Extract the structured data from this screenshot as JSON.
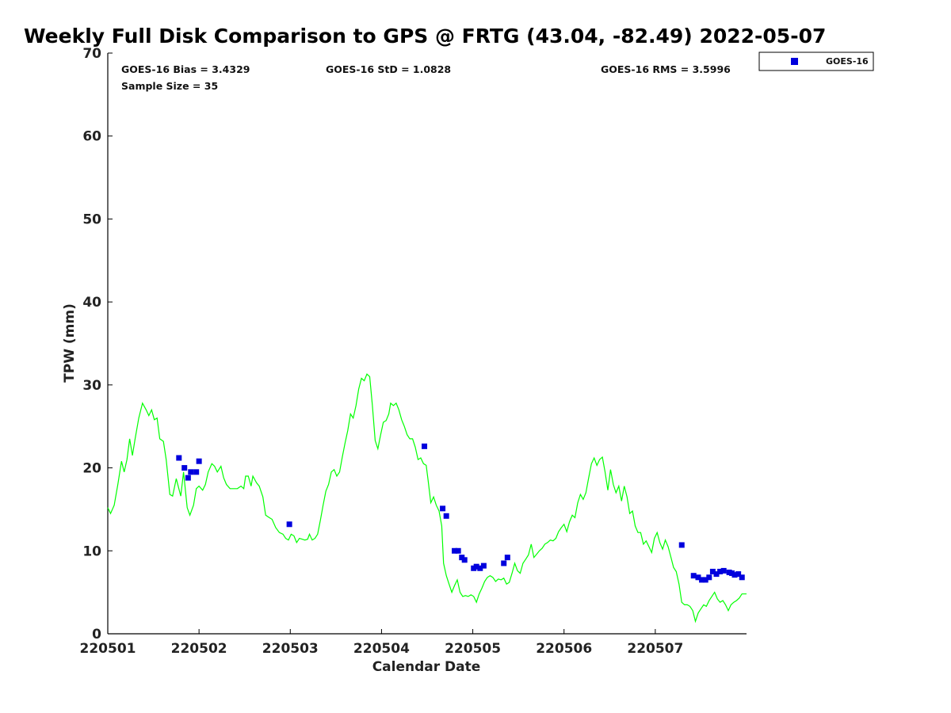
{
  "chart_data": {
    "type": "line+scatter",
    "title": "Weekly Full Disk Comparison to GPS @ FRTG (43.04, -82.49) 2022-05-07",
    "xlabel": "Calendar Date",
    "ylabel": "TPW (mm)",
    "xlim": [
      0,
      7
    ],
    "ylim": [
      0,
      70
    ],
    "x_tick_values": [
      0,
      1,
      2,
      3,
      4,
      5,
      6
    ],
    "x_tick_labels": [
      "220501",
      "220502",
      "220503",
      "220504",
      "220505",
      "220506",
      "220507"
    ],
    "y_ticks": [
      0,
      10,
      20,
      30,
      40,
      50,
      60,
      70
    ],
    "grid": false,
    "legend": {
      "position": "top-right-outside",
      "entries": [
        "GOES-16"
      ]
    },
    "stats": {
      "bias": "GOES-16 Bias = 3.4329",
      "std": "GOES-16 StD = 1.0828",
      "rms": "GOES-16 RMS = 3.5996",
      "sample": "Sample Size = 35"
    },
    "series": [
      {
        "type": "line",
        "color": "#00ff00",
        "points": [
          [
            0.0,
            15.2
          ],
          [
            0.03,
            14.5
          ],
          [
            0.07,
            15.5
          ],
          [
            0.11,
            18.0
          ],
          [
            0.15,
            20.8
          ],
          [
            0.18,
            19.5
          ],
          [
            0.21,
            21.0
          ],
          [
            0.24,
            23.5
          ],
          [
            0.27,
            21.5
          ],
          [
            0.3,
            23.5
          ],
          [
            0.34,
            26.0
          ],
          [
            0.38,
            27.8
          ],
          [
            0.42,
            27.0
          ],
          [
            0.45,
            26.3
          ],
          [
            0.48,
            27.0
          ],
          [
            0.51,
            25.8
          ],
          [
            0.54,
            26.0
          ],
          [
            0.57,
            23.5
          ],
          [
            0.61,
            23.2
          ],
          [
            0.64,
            21.0
          ],
          [
            0.68,
            16.8
          ],
          [
            0.71,
            16.6
          ],
          [
            0.75,
            18.7
          ],
          [
            0.8,
            16.6
          ],
          [
            0.83,
            19.5
          ],
          [
            0.87,
            15.2
          ],
          [
            0.9,
            14.3
          ],
          [
            0.94,
            15.5
          ],
          [
            0.97,
            17.5
          ],
          [
            1.0,
            17.8
          ],
          [
            1.04,
            17.3
          ],
          [
            1.07,
            18.0
          ],
          [
            1.1,
            19.5
          ],
          [
            1.14,
            20.5
          ],
          [
            1.17,
            20.2
          ],
          [
            1.2,
            19.5
          ],
          [
            1.24,
            20.2
          ],
          [
            1.27,
            18.8
          ],
          [
            1.3,
            18.0
          ],
          [
            1.34,
            17.5
          ],
          [
            1.38,
            17.5
          ],
          [
            1.42,
            17.5
          ],
          [
            1.46,
            17.8
          ],
          [
            1.49,
            17.5
          ],
          [
            1.51,
            19.0
          ],
          [
            1.54,
            19.0
          ],
          [
            1.57,
            17.8
          ],
          [
            1.59,
            19.0
          ],
          [
            1.63,
            18.2
          ],
          [
            1.66,
            17.8
          ],
          [
            1.7,
            16.5
          ],
          [
            1.73,
            14.3
          ],
          [
            1.77,
            14.0
          ],
          [
            1.8,
            13.8
          ],
          [
            1.84,
            12.8
          ],
          [
            1.88,
            12.2
          ],
          [
            1.92,
            12.0
          ],
          [
            1.95,
            11.5
          ],
          [
            1.98,
            11.3
          ],
          [
            2.01,
            12.0
          ],
          [
            2.04,
            11.8
          ],
          [
            2.07,
            11.0
          ],
          [
            2.1,
            11.5
          ],
          [
            2.13,
            11.4
          ],
          [
            2.16,
            11.3
          ],
          [
            2.19,
            11.4
          ],
          [
            2.21,
            12.0
          ],
          [
            2.24,
            11.3
          ],
          [
            2.27,
            11.5
          ],
          [
            2.3,
            12.0
          ],
          [
            2.33,
            13.7
          ],
          [
            2.36,
            15.5
          ],
          [
            2.39,
            17.2
          ],
          [
            2.42,
            18.0
          ],
          [
            2.45,
            19.5
          ],
          [
            2.48,
            19.8
          ],
          [
            2.51,
            19.0
          ],
          [
            2.54,
            19.5
          ],
          [
            2.57,
            21.3
          ],
          [
            2.6,
            23.0
          ],
          [
            2.63,
            24.5
          ],
          [
            2.66,
            26.5
          ],
          [
            2.69,
            26.0
          ],
          [
            2.72,
            27.5
          ],
          [
            2.75,
            29.5
          ],
          [
            2.78,
            30.8
          ],
          [
            2.81,
            30.5
          ],
          [
            2.84,
            31.3
          ],
          [
            2.87,
            31.0
          ],
          [
            2.9,
            27.5
          ],
          [
            2.93,
            23.3
          ],
          [
            2.96,
            22.3
          ],
          [
            2.99,
            24.0
          ],
          [
            3.02,
            25.5
          ],
          [
            3.05,
            25.7
          ],
          [
            3.08,
            26.5
          ],
          [
            3.1,
            27.8
          ],
          [
            3.13,
            27.5
          ],
          [
            3.16,
            27.8
          ],
          [
            3.19,
            27.0
          ],
          [
            3.22,
            25.8
          ],
          [
            3.25,
            25.0
          ],
          [
            3.28,
            24.0
          ],
          [
            3.31,
            23.5
          ],
          [
            3.34,
            23.5
          ],
          [
            3.37,
            22.5
          ],
          [
            3.4,
            21.0
          ],
          [
            3.43,
            21.2
          ],
          [
            3.46,
            20.5
          ],
          [
            3.49,
            20.3
          ],
          [
            3.51,
            18.5
          ],
          [
            3.54,
            15.8
          ],
          [
            3.57,
            16.5
          ],
          [
            3.6,
            15.5
          ],
          [
            3.63,
            14.8
          ],
          [
            3.66,
            13.0
          ],
          [
            3.68,
            8.5
          ],
          [
            3.71,
            7.0
          ],
          [
            3.74,
            6.0
          ],
          [
            3.77,
            5.0
          ],
          [
            3.8,
            5.8
          ],
          [
            3.83,
            6.5
          ],
          [
            3.86,
            5.0
          ],
          [
            3.89,
            4.5
          ],
          [
            3.92,
            4.6
          ],
          [
            3.95,
            4.5
          ],
          [
            3.98,
            4.7
          ],
          [
            4.01,
            4.5
          ],
          [
            4.04,
            3.8
          ],
          [
            4.07,
            4.8
          ],
          [
            4.1,
            5.5
          ],
          [
            4.13,
            6.3
          ],
          [
            4.16,
            6.8
          ],
          [
            4.19,
            7.0
          ],
          [
            4.22,
            6.8
          ],
          [
            4.25,
            6.3
          ],
          [
            4.28,
            6.6
          ],
          [
            4.31,
            6.5
          ],
          [
            4.34,
            6.7
          ],
          [
            4.37,
            6.0
          ],
          [
            4.4,
            6.2
          ],
          [
            4.43,
            7.3
          ],
          [
            4.46,
            8.5
          ],
          [
            4.49,
            7.6
          ],
          [
            4.52,
            7.3
          ],
          [
            4.55,
            8.5
          ],
          [
            4.58,
            9.0
          ],
          [
            4.61,
            9.5
          ],
          [
            4.64,
            10.8
          ],
          [
            4.67,
            9.2
          ],
          [
            4.7,
            9.6
          ],
          [
            4.73,
            10.0
          ],
          [
            4.76,
            10.3
          ],
          [
            4.79,
            10.8
          ],
          [
            4.82,
            11.0
          ],
          [
            4.85,
            11.3
          ],
          [
            4.88,
            11.2
          ],
          [
            4.91,
            11.5
          ],
          [
            4.94,
            12.3
          ],
          [
            4.97,
            12.8
          ],
          [
            5.0,
            13.2
          ],
          [
            5.03,
            12.3
          ],
          [
            5.06,
            13.5
          ],
          [
            5.09,
            14.3
          ],
          [
            5.12,
            14.0
          ],
          [
            5.15,
            15.8
          ],
          [
            5.18,
            16.8
          ],
          [
            5.21,
            16.2
          ],
          [
            5.24,
            17.0
          ],
          [
            5.27,
            18.8
          ],
          [
            5.3,
            20.5
          ],
          [
            5.33,
            21.2
          ],
          [
            5.36,
            20.3
          ],
          [
            5.39,
            21.0
          ],
          [
            5.42,
            21.3
          ],
          [
            5.45,
            19.5
          ],
          [
            5.48,
            17.3
          ],
          [
            5.51,
            19.8
          ],
          [
            5.54,
            18.0
          ],
          [
            5.57,
            17.0
          ],
          [
            5.6,
            17.8
          ],
          [
            5.63,
            16.0
          ],
          [
            5.66,
            17.8
          ],
          [
            5.69,
            16.5
          ],
          [
            5.72,
            14.5
          ],
          [
            5.75,
            14.8
          ],
          [
            5.78,
            13.0
          ],
          [
            5.81,
            12.2
          ],
          [
            5.84,
            12.2
          ],
          [
            5.87,
            10.8
          ],
          [
            5.9,
            11.2
          ],
          [
            5.93,
            10.5
          ],
          [
            5.96,
            9.8
          ],
          [
            5.99,
            11.5
          ],
          [
            6.02,
            12.2
          ],
          [
            6.05,
            11.0
          ],
          [
            6.08,
            10.2
          ],
          [
            6.11,
            11.3
          ],
          [
            6.14,
            10.5
          ],
          [
            6.17,
            9.3
          ],
          [
            6.2,
            8.0
          ],
          [
            6.23,
            7.5
          ],
          [
            6.26,
            6.0
          ],
          [
            6.29,
            3.8
          ],
          [
            6.32,
            3.5
          ],
          [
            6.35,
            3.5
          ],
          [
            6.38,
            3.3
          ],
          [
            6.41,
            2.8
          ],
          [
            6.44,
            1.5
          ],
          [
            6.47,
            2.5
          ],
          [
            6.5,
            3.0
          ],
          [
            6.53,
            3.5
          ],
          [
            6.56,
            3.3
          ],
          [
            6.59,
            4.0
          ],
          [
            6.62,
            4.5
          ],
          [
            6.65,
            5.0
          ],
          [
            6.68,
            4.2
          ],
          [
            6.71,
            3.8
          ],
          [
            6.74,
            4.0
          ],
          [
            6.77,
            3.5
          ],
          [
            6.8,
            2.8
          ],
          [
            6.83,
            3.5
          ],
          [
            6.86,
            3.8
          ],
          [
            6.89,
            4.0
          ],
          [
            6.92,
            4.3
          ],
          [
            6.95,
            4.8
          ],
          [
            7.0,
            4.8
          ]
        ]
      },
      {
        "type": "scatter",
        "name": "GOES-16",
        "color": "#0000dd",
        "marker": "square",
        "points": [
          [
            0.78,
            21.2
          ],
          [
            0.84,
            20.0
          ],
          [
            0.88,
            18.8
          ],
          [
            0.91,
            19.5
          ],
          [
            0.97,
            19.5
          ],
          [
            1.0,
            20.8
          ],
          [
            1.99,
            13.2
          ],
          [
            3.47,
            22.6
          ],
          [
            3.67,
            15.1
          ],
          [
            3.71,
            14.2
          ],
          [
            3.8,
            10.0
          ],
          [
            3.84,
            10.0
          ],
          [
            3.88,
            9.2
          ],
          [
            3.91,
            8.9
          ],
          [
            4.01,
            7.9
          ],
          [
            4.04,
            8.1
          ],
          [
            4.08,
            7.9
          ],
          [
            4.12,
            8.2
          ],
          [
            4.34,
            8.5
          ],
          [
            4.38,
            9.2
          ],
          [
            6.29,
            10.7
          ],
          [
            6.42,
            7.0
          ],
          [
            6.47,
            6.8
          ],
          [
            6.51,
            6.5
          ],
          [
            6.55,
            6.5
          ],
          [
            6.59,
            6.8
          ],
          [
            6.63,
            7.5
          ],
          [
            6.67,
            7.2
          ],
          [
            6.71,
            7.5
          ],
          [
            6.75,
            7.6
          ],
          [
            6.81,
            7.4
          ],
          [
            6.84,
            7.3
          ],
          [
            6.87,
            7.1
          ],
          [
            6.91,
            7.2
          ],
          [
            6.95,
            6.8
          ]
        ]
      }
    ]
  }
}
